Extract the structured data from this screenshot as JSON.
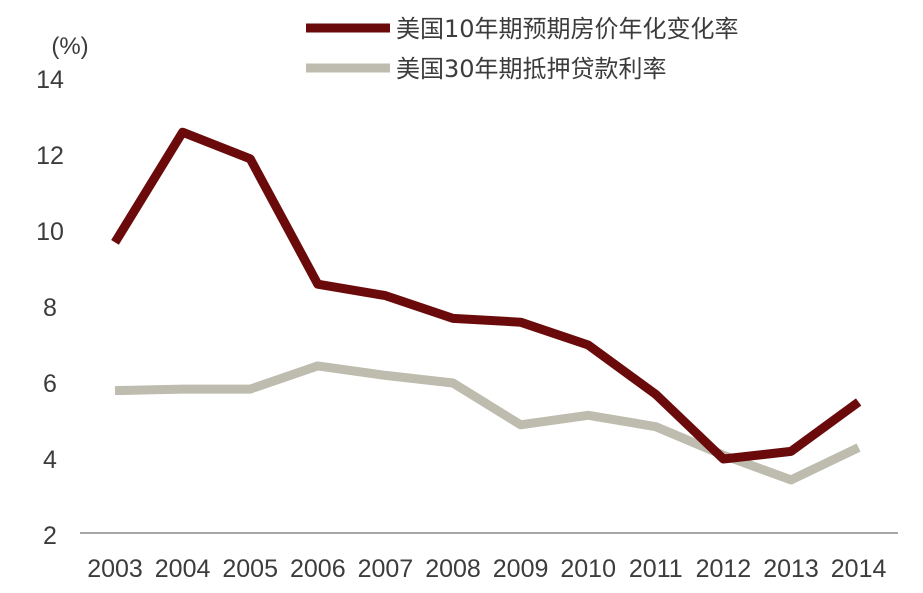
{
  "chart_data": {
    "type": "line",
    "unit_label": "(%)",
    "categories": [
      "2003",
      "2004",
      "2005",
      "2006",
      "2007",
      "2008",
      "2009",
      "2010",
      "2011",
      "2012",
      "2013",
      "2014"
    ],
    "ylim": [
      2,
      14
    ],
    "yticks": [
      2,
      4,
      6,
      8,
      10,
      12,
      14
    ],
    "grid": false,
    "legend_position": "top-right",
    "series": [
      {
        "name": "美国10年期预期房价年化变化率",
        "color": "#6b0a0a",
        "values": [
          9.7,
          12.6,
          11.9,
          8.6,
          8.3,
          7.7,
          7.6,
          7.0,
          5.7,
          4.0,
          4.2,
          5.5
        ]
      },
      {
        "name": "美国30年期抵押贷款利率",
        "color": "#bdbcae",
        "values": [
          5.8,
          5.84,
          5.84,
          6.45,
          6.2,
          6.0,
          4.9,
          5.15,
          4.85,
          4.1,
          3.45,
          4.3
        ]
      }
    ]
  }
}
